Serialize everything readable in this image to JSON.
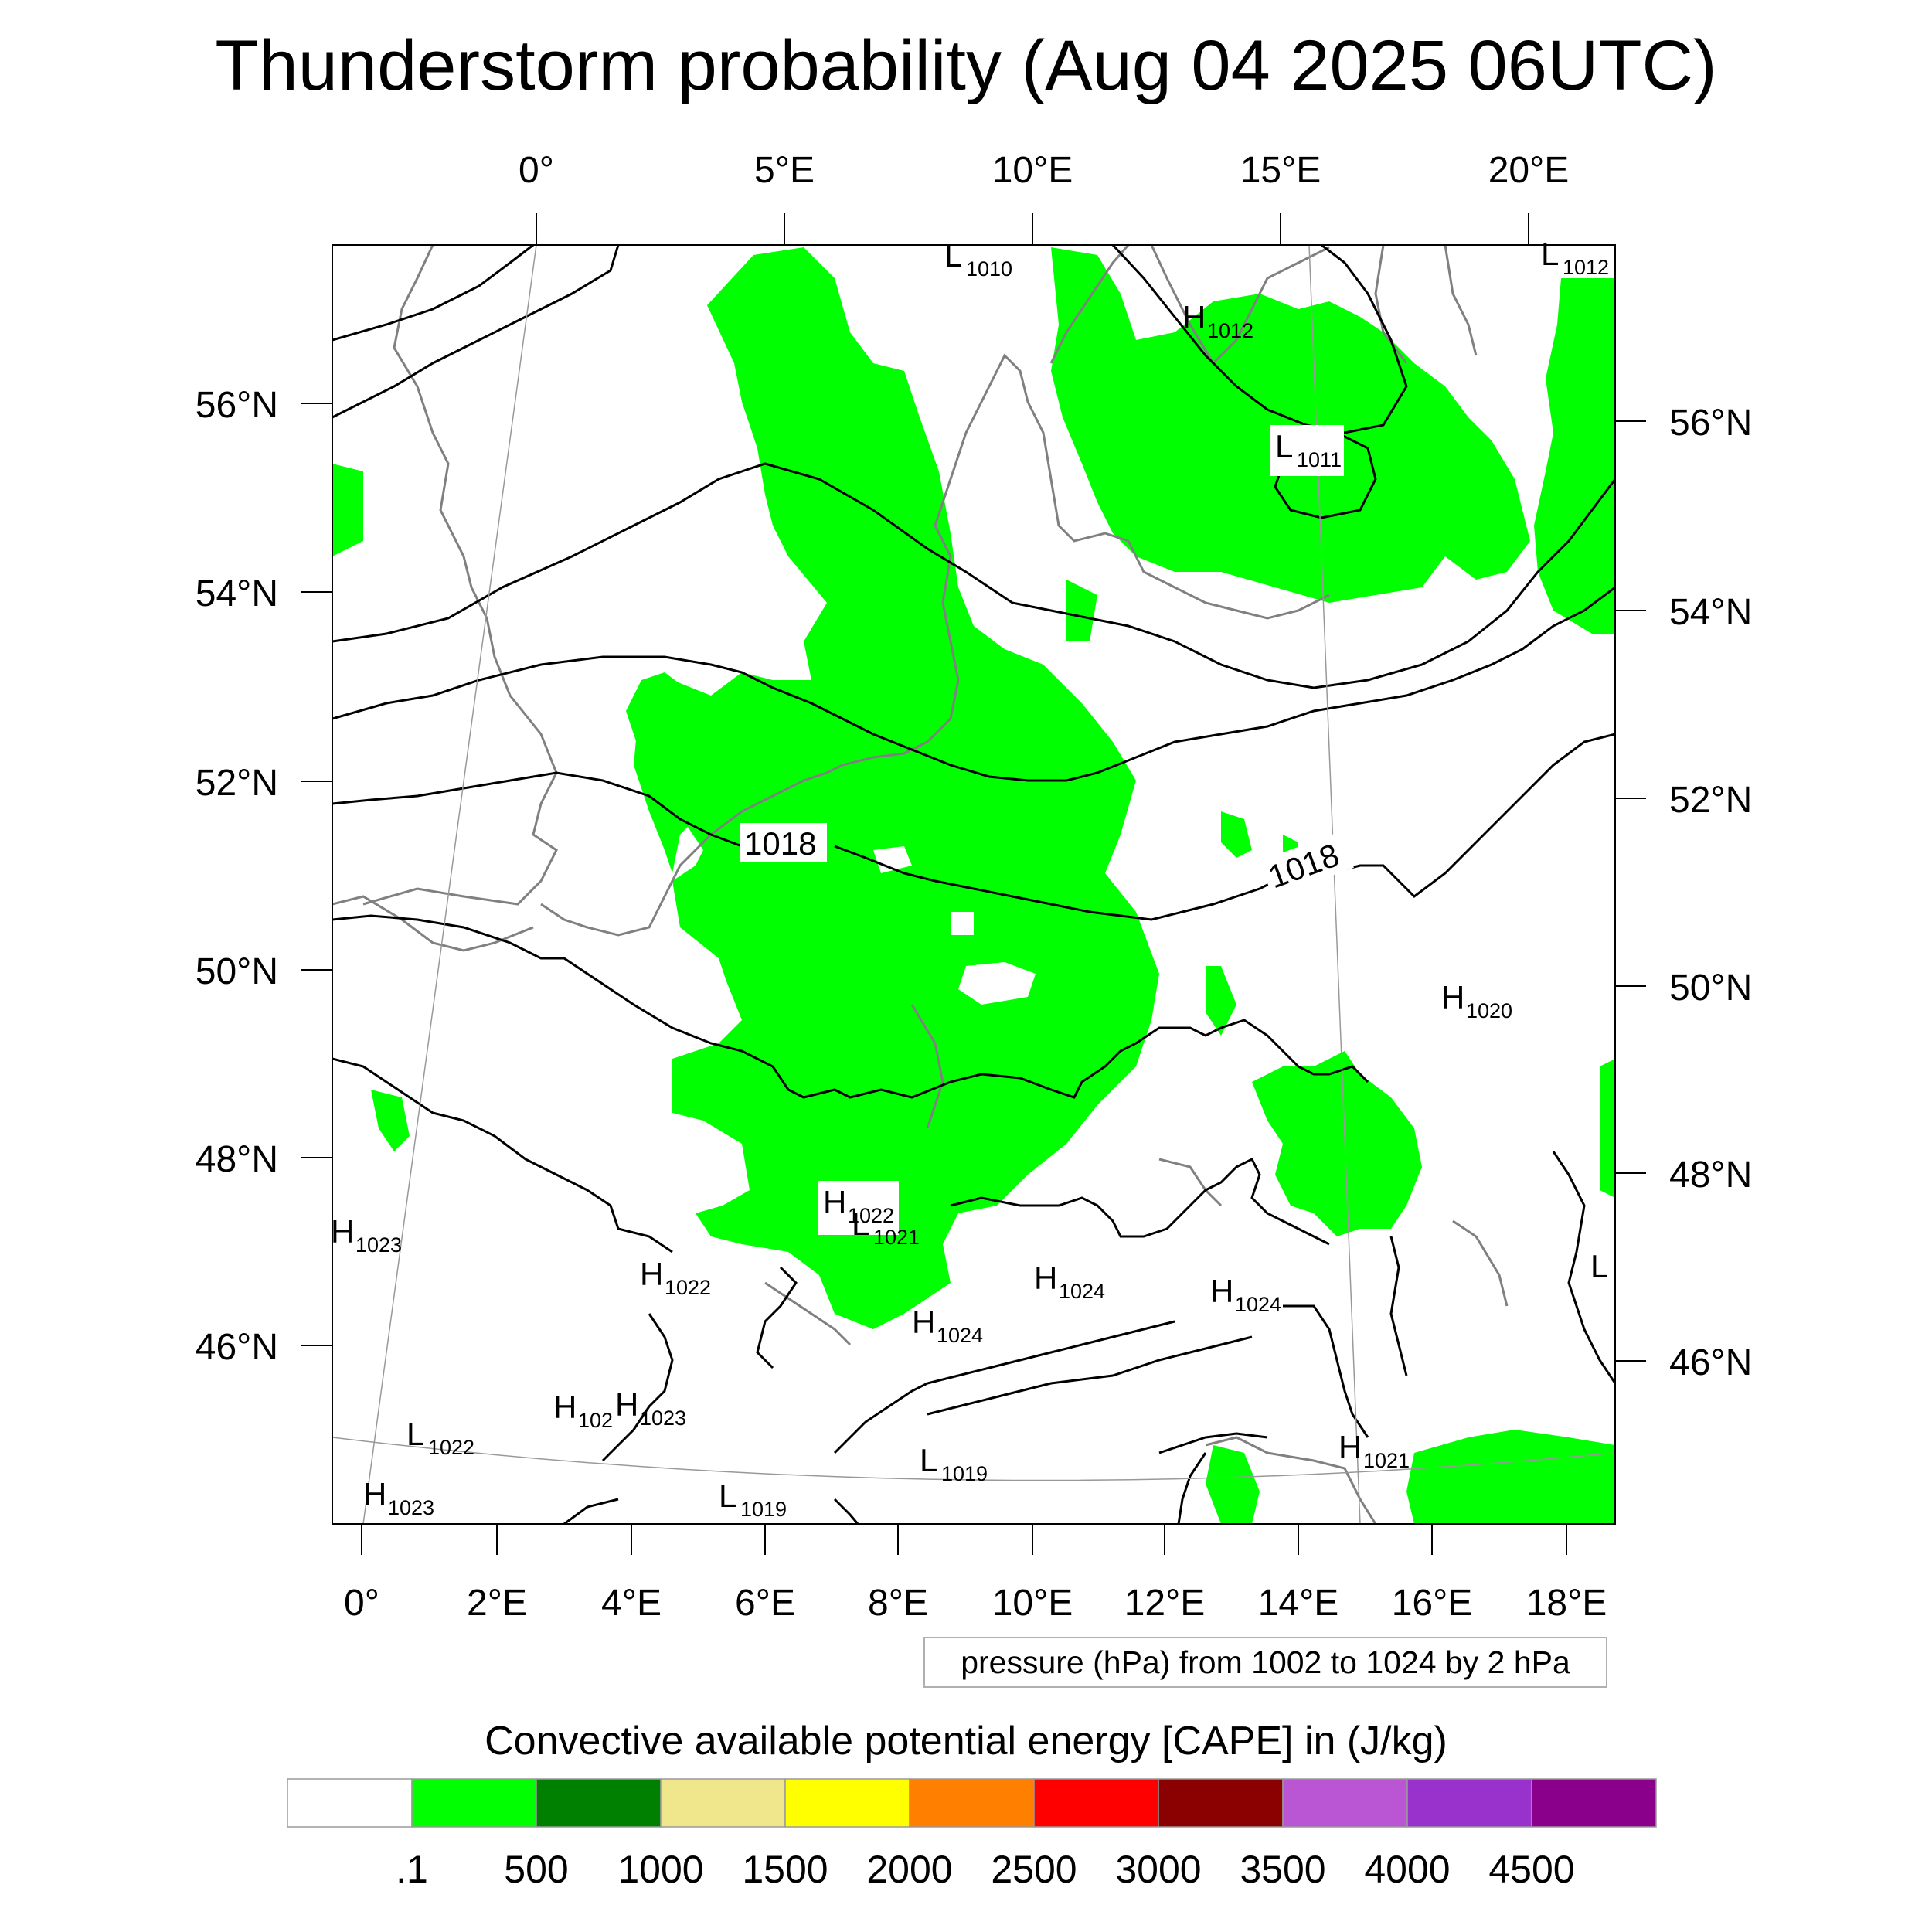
{
  "title": "Thunderstorm probability (Aug 04 2025 06UTC)",
  "map": {
    "top_lon_labels": [
      "0°",
      "5°E",
      "10°E",
      "15°E",
      "20°E"
    ],
    "bottom_lon_labels": [
      "0°",
      "2°E",
      "4°E",
      "6°E",
      "8°E",
      "10°E",
      "12°E",
      "14°E",
      "16°E",
      "18°E"
    ],
    "left_lat_labels": [
      "56°N",
      "54°N",
      "52°N",
      "50°N",
      "48°N",
      "46°N"
    ],
    "right_lat_labels": [
      "56°N",
      "54°N",
      "52°N",
      "50°N",
      "48°N",
      "46°N"
    ],
    "contour_labels": [
      "1018",
      "1018"
    ],
    "pressure_centers": [
      {
        "type": "L",
        "value": "1010"
      },
      {
        "type": "L",
        "value": "1012"
      },
      {
        "type": "H",
        "value": "1012"
      },
      {
        "type": "L",
        "value": "1011"
      },
      {
        "type": "H",
        "value": "1020"
      },
      {
        "type": "H",
        "value": "1022"
      },
      {
        "type": "L",
        "value": "1021"
      },
      {
        "type": "H",
        "value": "1023"
      },
      {
        "type": "H",
        "value": "1022"
      },
      {
        "type": "H",
        "value": "1024"
      },
      {
        "type": "H",
        "value": "1024"
      },
      {
        "type": "H",
        "value": "1024"
      },
      {
        "type": "L",
        "value": ""
      },
      {
        "type": "H",
        "value": "102"
      },
      {
        "type": "H",
        "value": "1023"
      },
      {
        "type": "L",
        "value": "1022"
      },
      {
        "type": "H",
        "value": "1023"
      },
      {
        "type": "L",
        "value": "1019"
      },
      {
        "type": "L",
        "value": "1019"
      },
      {
        "type": "H",
        "value": "1021"
      }
    ],
    "cape_color": "#00ff00",
    "contour_color": "#000000",
    "coastline_color": "#808080"
  },
  "contour_note": "pressure (hPa) from 1002 to 1024 by 2 hPa",
  "colorbar": {
    "title": "Convective available potential energy [CAPE] in (J/kg)",
    "colors": [
      "#ffffff",
      "#00ff00",
      "#008000",
      "#f0e68c",
      "#ffff00",
      "#ff8000",
      "#ff0000",
      "#8b0000",
      "#ba55d3",
      "#9932cc",
      "#8b008b"
    ],
    "tick_labels": [
      ".1",
      "500",
      "1000",
      "1500",
      "2000",
      "2500",
      "3000",
      "3500",
      "4000",
      "4500"
    ]
  }
}
